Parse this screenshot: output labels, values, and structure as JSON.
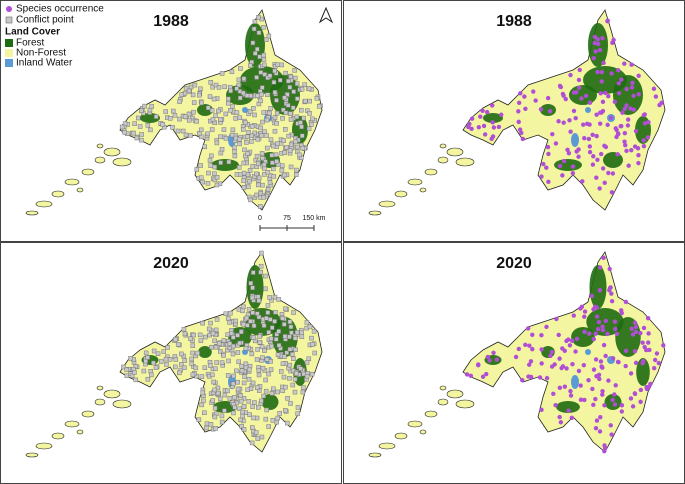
{
  "panels": [
    {
      "title": "1988"
    },
    {
      "title": "1988"
    },
    {
      "title": "2020"
    },
    {
      "title": "2020"
    }
  ],
  "legend": {
    "items": [
      {
        "label": "Species occurrence",
        "color": "#b04fd6"
      },
      {
        "label": "Conflict point",
        "color": "#a8a8a8"
      }
    ],
    "land_cover_title": "Land Cover",
    "land_cover_items": [
      {
        "label": "Forest",
        "color": "#1f6b12"
      },
      {
        "label": "Non-Forest",
        "color": "#f3f5a0"
      },
      {
        "label": "Inland Water",
        "color": "#5b9bd5"
      }
    ]
  },
  "scale_bar": {
    "labels": [
      "0",
      "75",
      "150 km"
    ]
  }
}
